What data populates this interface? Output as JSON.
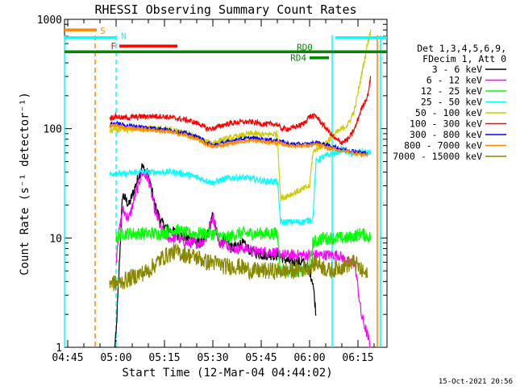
{
  "chart_data": {
    "type": "line",
    "title": "RHESSI Observing Summary Count Rates",
    "xlabel": "Start Time (12-Mar-04 04:44:02)",
    "ylabel": "Count Rate (s⁻¹ detector⁻¹)",
    "yscale": "log",
    "ylim": [
      1,
      1000
    ],
    "xlim_minutes": [
      0,
      100
    ],
    "x_tick_labels": [
      {
        "label": "04:45",
        "t": 1.0
      },
      {
        "label": "05:00",
        "t": 16.0
      },
      {
        "label": "05:15",
        "t": 31.0
      },
      {
        "label": "05:30",
        "t": 46.0
      },
      {
        "label": "05:45",
        "t": 61.0
      },
      {
        "label": "06:00",
        "t": 76.0
      },
      {
        "label": "06:15",
        "t": 91.0
      }
    ],
    "y_tick_labels": [
      {
        "label": "1",
        "v": 1
      },
      {
        "label": "10",
        "v": 10
      },
      {
        "label": "100",
        "v": 100
      },
      {
        "label": "1000",
        "v": 1000
      }
    ],
    "legend": {
      "header": [
        "Det 1,3,4,5,6,9,",
        "FDecim 1, Att 0"
      ],
      "entries": [
        {
          "label": "3 - 6 keV",
          "color": "#000000"
        },
        {
          "label": "6 - 12 keV",
          "color": "#ff00ff"
        },
        {
          "label": "12 - 25 keV",
          "color": "#00ff00"
        },
        {
          "label": "25 - 50 keV",
          "color": "#00ffff"
        },
        {
          "label": "50 - 100 keV",
          "color": "#cccc00"
        },
        {
          "label": "100 - 300 keV",
          "color": "#ff0000"
        },
        {
          "label": "300 - 800 keV",
          "color": "#0000ff"
        },
        {
          "label": "800 - 7000 keV",
          "color": "#ff8800"
        },
        {
          "label": "7000 - 15000 keV",
          "color": "#888800"
        }
      ]
    },
    "series": [
      {
        "name": "3 - 6 keV",
        "color": "#000000",
        "noise": 0.05,
        "t": [
          15.5,
          16,
          18,
          20,
          22,
          24,
          26,
          28,
          30,
          32,
          35,
          38,
          42,
          44,
          46,
          48,
          50,
          52,
          55,
          58,
          62,
          66,
          70,
          74,
          76,
          77,
          78
        ],
        "v": [
          1,
          1.3,
          25,
          20,
          30,
          45,
          38,
          20,
          14,
          12,
          11,
          10,
          9,
          10,
          16,
          9,
          10,
          8,
          9,
          7.5,
          7,
          7,
          6,
          6,
          5,
          4,
          2
        ]
      },
      {
        "name": "6 - 12 keV",
        "color": "#ff00ff",
        "noise": 0.05,
        "t": [
          16,
          16.5,
          18,
          20,
          22,
          24,
          26,
          28,
          30,
          32,
          35,
          38,
          42,
          44,
          46,
          48,
          50,
          52,
          56,
          60,
          64,
          68,
          72,
          76,
          80,
          85,
          88,
          90,
          92,
          95
        ],
        "v": [
          6,
          9.5,
          18,
          15,
          25,
          40,
          35,
          18,
          12,
          10,
          10,
          9,
          9,
          10,
          16,
          9,
          9,
          8,
          8,
          7.5,
          7.5,
          7,
          7,
          7,
          7,
          7,
          6,
          6,
          2,
          1
        ]
      },
      {
        "name": "12 - 25 keV",
        "color": "#00ff00",
        "noise": 0.06,
        "t": [
          16,
          18,
          22,
          26,
          30,
          34,
          38,
          42,
          46,
          50,
          54,
          58,
          62,
          66,
          67,
          70,
          74,
          76,
          77,
          80,
          84,
          88,
          92,
          95
        ],
        "v": [
          10,
          11,
          11,
          11,
          11,
          12,
          11,
          11,
          11,
          10,
          11,
          11,
          11,
          11,
          5,
          5,
          5,
          5.5,
          9,
          10,
          10,
          10,
          11,
          10
        ]
      },
      {
        "name": "25 - 50 keV",
        "color": "#00ffff",
        "noise": 0.03,
        "t": [
          14,
          16,
          18,
          22,
          26,
          30,
          34,
          38,
          42,
          46,
          50,
          54,
          58,
          62,
          66,
          67,
          70,
          74,
          77,
          78,
          80,
          84,
          86,
          88,
          90,
          92,
          94,
          95
        ],
        "v": [
          38,
          40,
          38,
          40,
          40,
          40,
          40,
          38,
          35,
          32,
          35,
          36,
          35,
          33,
          33,
          14,
          14,
          14,
          15,
          50,
          55,
          60,
          65,
          60,
          58,
          62,
          60,
          60
        ]
      },
      {
        "name": "50 - 100 keV",
        "color": "#cccc00",
        "noise": 0.03,
        "t": [
          14,
          16,
          18,
          22,
          26,
          30,
          34,
          38,
          42,
          44,
          46,
          50,
          54,
          58,
          62,
          66,
          67,
          70,
          74,
          76,
          77,
          78,
          80,
          84,
          88,
          90,
          92,
          94,
          95
        ],
        "v": [
          95,
          98,
          95,
          100,
          100,
          100,
          95,
          90,
          80,
          75,
          75,
          80,
          85,
          90,
          88,
          90,
          23,
          25,
          28,
          30,
          60,
          65,
          70,
          90,
          110,
          150,
          300,
          600,
          800
        ]
      },
      {
        "name": "100 - 300 keV",
        "color": "#ff0000",
        "noise": 0.025,
        "t": [
          14,
          16,
          18,
          22,
          26,
          30,
          34,
          38,
          42,
          44,
          46,
          50,
          54,
          58,
          62,
          66,
          67,
          70,
          74,
          76,
          77,
          78,
          80,
          84,
          86,
          88,
          90,
          92,
          94,
          95
        ],
        "v": [
          125,
          130,
          125,
          128,
          130,
          130,
          125,
          120,
          110,
          100,
          100,
          110,
          115,
          115,
          110,
          110,
          100,
          100,
          110,
          130,
          130,
          130,
          110,
          80,
          75,
          80,
          100,
          150,
          200,
          300
        ]
      },
      {
        "name": "300 - 800 keV",
        "color": "#0000ff",
        "noise": 0.02,
        "t": [
          14,
          16,
          18,
          22,
          26,
          30,
          34,
          38,
          42,
          44,
          46,
          50,
          54,
          58,
          62,
          66,
          70,
          74,
          76,
          78,
          82,
          86,
          90,
          92,
          94
        ],
        "v": [
          110,
          112,
          108,
          105,
          102,
          100,
          95,
          90,
          82,
          75,
          70,
          75,
          80,
          82,
          80,
          78,
          72,
          72,
          72,
          75,
          70,
          65,
          62,
          60,
          60
        ]
      },
      {
        "name": "800 - 7000 keV",
        "color": "#ff8800",
        "noise": 0.02,
        "t": [
          14,
          16,
          18,
          22,
          26,
          30,
          34,
          38,
          42,
          44,
          46,
          50,
          54,
          58,
          62,
          66,
          70,
          74,
          76,
          78,
          82,
          86,
          90,
          92,
          94
        ],
        "v": [
          105,
          108,
          104,
          100,
          98,
          95,
          92,
          86,
          78,
          72,
          68,
          72,
          76,
          78,
          76,
          74,
          70,
          70,
          70,
          72,
          66,
          63,
          60,
          58,
          58
        ]
      },
      {
        "name": "7000 - 15000 keV",
        "color": "#888800",
        "noise": 0.08,
        "t": [
          14,
          16,
          18,
          22,
          26,
          30,
          34,
          38,
          42,
          44,
          46,
          50,
          54,
          58,
          62,
          66,
          70,
          74,
          76,
          78,
          82,
          86,
          90,
          92,
          94
        ],
        "v": [
          4,
          3.8,
          4,
          4.5,
          5,
          6.5,
          7.5,
          7,
          6.5,
          6,
          6,
          5.5,
          5.5,
          5,
          5,
          5,
          5,
          5.2,
          5.5,
          6,
          5,
          5.5,
          6,
          5,
          4.5
        ]
      }
    ],
    "annotations": {
      "attenuator_states": [
        {
          "label": "S",
          "t_start": 0,
          "t_end": 10,
          "value": 800,
          "color": "#ff8800"
        },
        {
          "label": "N",
          "t_start": 0,
          "t_end": 16,
          "value": 680,
          "color": "#00ffff"
        },
        {
          "label": "F",
          "t_start": 17,
          "t_end": 35,
          "value": 570,
          "color": "#ff0000"
        },
        {
          "label": "RD0",
          "t_start": 0,
          "t_end": 100,
          "value": 505,
          "color": "#008800"
        },
        {
          "label": "RD4",
          "t_start": 76,
          "t_end": 82,
          "value": 445,
          "color": "#008800"
        },
        {
          "label": "",
          "t_start": 84,
          "t_end": 100,
          "value": 680,
          "color": "#00ffff"
        }
      ],
      "vertical_markers": [
        {
          "t": 0,
          "color": "#00ffff",
          "style": "solid"
        },
        {
          "t": 9.5,
          "color": "#ff8800",
          "style": "dashed"
        },
        {
          "t": 16,
          "color": "#00ffff",
          "style": "dashed"
        },
        {
          "t": 83,
          "color": "#00ffff",
          "style": "solid"
        },
        {
          "t": 97,
          "color": "#ff8800",
          "style": "solid"
        },
        {
          "t": 98,
          "color": "#00ffff",
          "style": "solid"
        }
      ]
    },
    "timestamp": "15-Oct-2021 20:56"
  }
}
